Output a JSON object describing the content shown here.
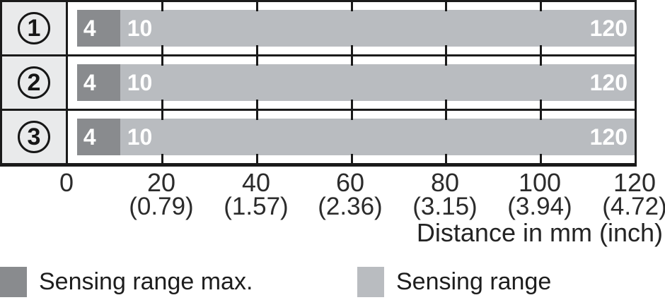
{
  "chart_data": {
    "type": "bar",
    "orientation": "horizontal",
    "xlabel": "Distance in mm (inch)",
    "xlim_mm": [
      0,
      120
    ],
    "tick_step_mm": 20,
    "grid": "tick marks every 20 mm at top and bottom of each row",
    "x_ticks": [
      {
        "mm": "0",
        "inch": ""
      },
      {
        "mm": "20",
        "inch": "(0.79)"
      },
      {
        "mm": "40",
        "inch": "(1.57)"
      },
      {
        "mm": "60",
        "inch": "(2.36)"
      },
      {
        "mm": "80",
        "inch": "(3.15)"
      },
      {
        "mm": "100",
        "inch": "(3.94)"
      },
      {
        "mm": "120",
        "inch": "(4.72)"
      }
    ],
    "rows": [
      {
        "label": "1",
        "sensing_range_max_mm": [
          4,
          10
        ],
        "sensing_range_mm": [
          10,
          120
        ],
        "bar_labels": {
          "start": "4",
          "mid": "10",
          "end": "120"
        }
      },
      {
        "label": "2",
        "sensing_range_max_mm": [
          4,
          10
        ],
        "sensing_range_mm": [
          10,
          120
        ],
        "bar_labels": {
          "start": "4",
          "mid": "10",
          "end": "120"
        }
      },
      {
        "label": "3",
        "sensing_range_max_mm": [
          4,
          10
        ],
        "sensing_range_mm": [
          10,
          120
        ],
        "bar_labels": {
          "start": "4",
          "mid": "10",
          "end": "120"
        }
      }
    ],
    "legend": [
      {
        "label": "Sensing range max.",
        "color": "#898b8e"
      },
      {
        "label": "Sensing range",
        "color": "#b9bcc0"
      }
    ],
    "colors": {
      "sensing_range_max": "#898b8e",
      "sensing_range": "#b9bcc0",
      "row_label_background": "#e9eaeb",
      "border": "#1a1a1a",
      "bar_value_text": "#ffffff"
    }
  }
}
